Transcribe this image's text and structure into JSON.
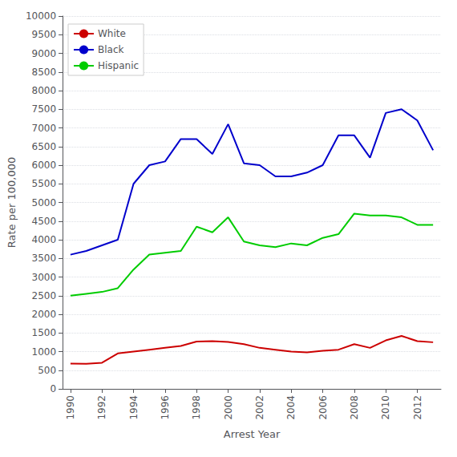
{
  "chart_data": {
    "type": "line",
    "xlabel": "Arrest Year",
    "ylabel": "Rate per 100,000",
    "x": [
      1990,
      1991,
      1992,
      1993,
      1994,
      1995,
      1996,
      1997,
      1998,
      1999,
      2000,
      2001,
      2002,
      2003,
      2004,
      2005,
      2006,
      2007,
      2008,
      2009,
      2010,
      2011,
      2012,
      2013
    ],
    "series": [
      {
        "name": "White",
        "color": "#cc0000",
        "values": [
          680,
          670,
          700,
          950,
          1000,
          1050,
          1100,
          1150,
          1270,
          1280,
          1260,
          1200,
          1100,
          1050,
          1000,
          980,
          1020,
          1050,
          1200,
          1100,
          1300,
          1420,
          1280,
          1250
        ]
      },
      {
        "name": "Black",
        "color": "#0000cc",
        "values": [
          3600,
          3700,
          3850,
          4000,
          5500,
          6000,
          6100,
          6700,
          6700,
          6300,
          7100,
          6050,
          6000,
          5700,
          5700,
          5800,
          6000,
          6800,
          6800,
          6200,
          7400,
          7500,
          7200,
          6400
        ]
      },
      {
        "name": "Hispanic",
        "color": "#00cc00",
        "values": [
          2500,
          2550,
          2600,
          2700,
          3200,
          3600,
          3650,
          3700,
          4350,
          4200,
          4600,
          3950,
          3850,
          3800,
          3900,
          3850,
          4050,
          4150,
          4700,
          4650,
          4650,
          4600,
          4400,
          4400
        ]
      }
    ],
    "xlim": [
      1989.5,
      2013.5
    ],
    "xticks": [
      1990,
      1992,
      1994,
      1996,
      1998,
      2000,
      2002,
      2004,
      2006,
      2008,
      2010,
      2012
    ],
    "ylim": [
      0,
      10000
    ],
    "yticks": [
      0,
      500,
      1000,
      1500,
      2000,
      2500,
      3000,
      3500,
      4000,
      4500,
      5000,
      5500,
      6000,
      6500,
      7000,
      7500,
      8000,
      8500,
      9000,
      9500,
      10000
    ],
    "grid": true,
    "legend": "upper left"
  }
}
